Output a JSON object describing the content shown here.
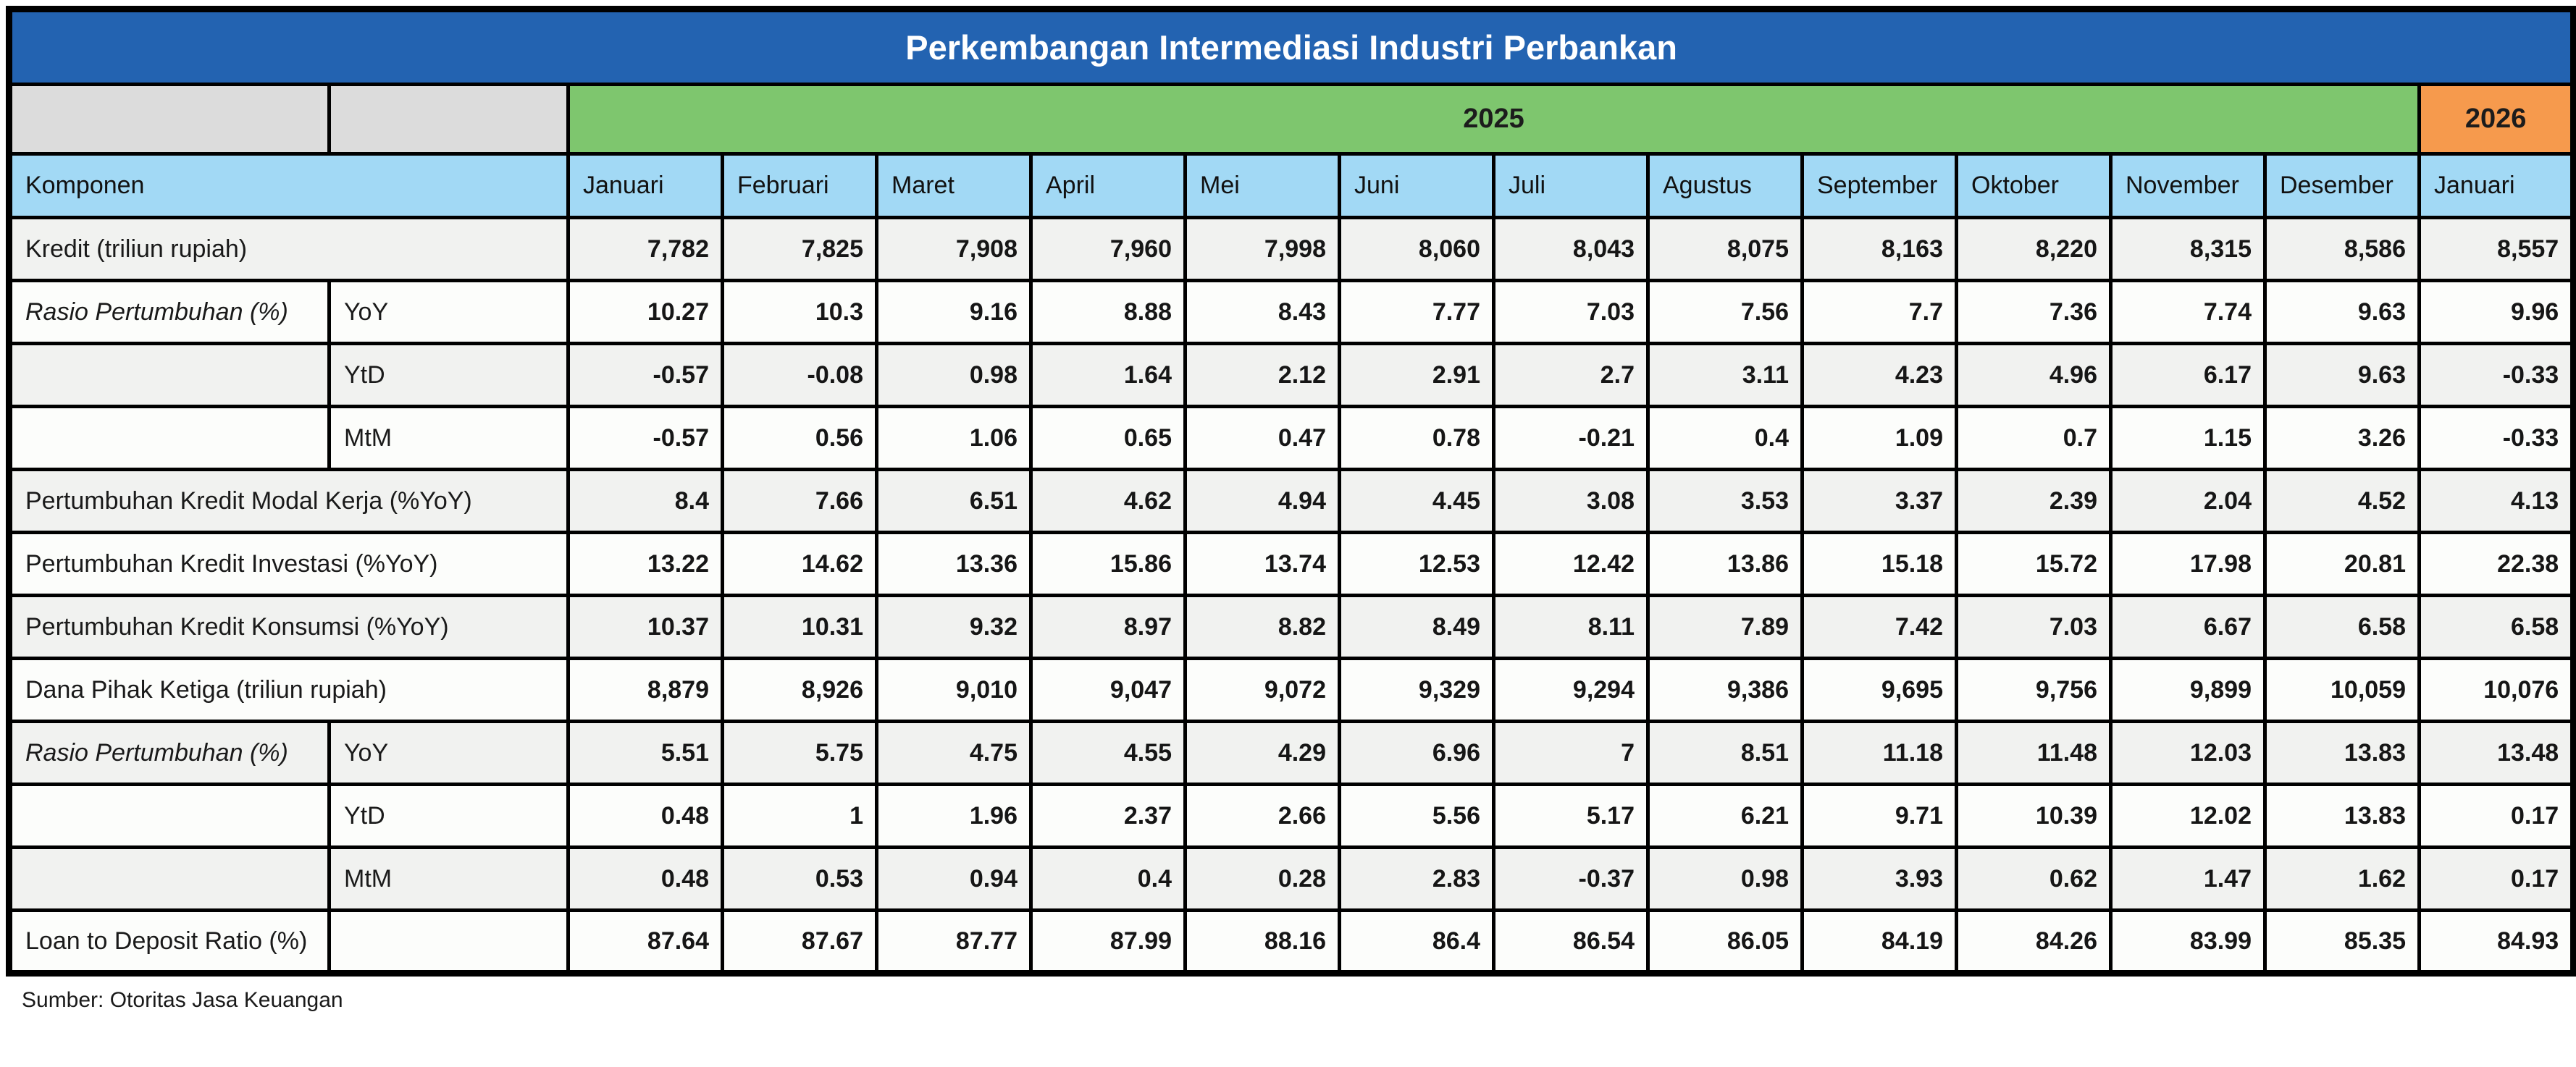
{
  "title": "Perkembangan Intermediasi Industri Perbankan",
  "source_note": "Sumber: Otoritas Jasa Keuangan",
  "colors": {
    "title_bar": "#2363B1",
    "title_text": "#FFFFFF",
    "year_2025": "#7EC66E",
    "year_2026": "#F69A4D",
    "column_header": "#A2D9F5",
    "corner_gray": "#DCDCDC",
    "border": "#000000",
    "row_stripe_odd": "#F1F2F0",
    "row_stripe_even": "#FCFDFB"
  },
  "chart_data": {
    "type": "table",
    "title": "Perkembangan Intermediasi Industri Perbankan",
    "year_groups": [
      {
        "label": "2025",
        "months_span": 12
      },
      {
        "label": "2026",
        "months_span": 1
      }
    ],
    "columns": [
      "Komponen",
      "Januari",
      "Februari",
      "Maret",
      "April",
      "Mei",
      "Juni",
      "Juli",
      "Agustus",
      "September",
      "Oktober",
      "November",
      "Desember",
      "Januari"
    ],
    "rows": [
      {
        "label": "Kredit (triliun rupiah)",
        "sublabel": null,
        "label_colspan": 2,
        "italic": false,
        "values": [
          "7,782",
          "7,825",
          "7,908",
          "7,960",
          "7,998",
          "8,060",
          "8,043",
          "8,075",
          "8,163",
          "8,220",
          "8,315",
          "8,586",
          "8,557"
        ]
      },
      {
        "label": "Rasio Pertumbuhan (%)",
        "sublabel": "YoY",
        "label_colspan": 1,
        "italic": true,
        "values": [
          "10.27",
          "10.3",
          "9.16",
          "8.88",
          "8.43",
          "7.77",
          "7.03",
          "7.56",
          "7.7",
          "7.36",
          "7.74",
          "9.63",
          "9.96"
        ]
      },
      {
        "label": "",
        "sublabel": "YtD",
        "label_colspan": 1,
        "italic": false,
        "values": [
          "-0.57",
          "-0.08",
          "0.98",
          "1.64",
          "2.12",
          "2.91",
          "2.7",
          "3.11",
          "4.23",
          "4.96",
          "6.17",
          "9.63",
          "-0.33"
        ]
      },
      {
        "label": "",
        "sublabel": "MtM",
        "label_colspan": 1,
        "italic": false,
        "values": [
          "-0.57",
          "0.56",
          "1.06",
          "0.65",
          "0.47",
          "0.78",
          "-0.21",
          "0.4",
          "1.09",
          "0.7",
          "1.15",
          "3.26",
          "-0.33"
        ]
      },
      {
        "label": "Pertumbuhan Kredit Modal Kerja (%YoY)",
        "sublabel": null,
        "label_colspan": 2,
        "italic": false,
        "values": [
          "8.4",
          "7.66",
          "6.51",
          "4.62",
          "4.94",
          "4.45",
          "3.08",
          "3.53",
          "3.37",
          "2.39",
          "2.04",
          "4.52",
          "4.13"
        ]
      },
      {
        "label": "Pertumbuhan Kredit Investasi (%YoY)",
        "sublabel": null,
        "label_colspan": 2,
        "italic": false,
        "values": [
          "13.22",
          "14.62",
          "13.36",
          "15.86",
          "13.74",
          "12.53",
          "12.42",
          "13.86",
          "15.18",
          "15.72",
          "17.98",
          "20.81",
          "22.38"
        ]
      },
      {
        "label": "Pertumbuhan Kredit Konsumsi (%YoY)",
        "sublabel": null,
        "label_colspan": 2,
        "italic": false,
        "values": [
          "10.37",
          "10.31",
          "9.32",
          "8.97",
          "8.82",
          "8.49",
          "8.11",
          "7.89",
          "7.42",
          "7.03",
          "6.67",
          "6.58",
          "6.58"
        ]
      },
      {
        "label": "Dana Pihak Ketiga (triliun rupiah)",
        "sublabel": null,
        "label_colspan": 2,
        "italic": false,
        "values": [
          "8,879",
          "8,926",
          "9,010",
          "9,047",
          "9,072",
          "9,329",
          "9,294",
          "9,386",
          "9,695",
          "9,756",
          "9,899",
          "10,059",
          "10,076"
        ]
      },
      {
        "label": "Rasio Pertumbuhan (%)",
        "sublabel": "YoY",
        "label_colspan": 1,
        "italic": true,
        "values": [
          "5.51",
          "5.75",
          "4.75",
          "4.55",
          "4.29",
          "6.96",
          "7",
          "8.51",
          "11.18",
          "11.48",
          "12.03",
          "13.83",
          "13.48"
        ]
      },
      {
        "label": "",
        "sublabel": "YtD",
        "label_colspan": 1,
        "italic": false,
        "values": [
          "0.48",
          "1",
          "1.96",
          "2.37",
          "2.66",
          "5.56",
          "5.17",
          "6.21",
          "9.71",
          "10.39",
          "12.02",
          "13.83",
          "0.17"
        ]
      },
      {
        "label": "",
        "sublabel": "MtM",
        "label_colspan": 1,
        "italic": false,
        "values": [
          "0.48",
          "0.53",
          "0.94",
          "0.4",
          "0.28",
          "2.83",
          "-0.37",
          "0.98",
          "3.93",
          "0.62",
          "1.47",
          "1.62",
          "0.17"
        ]
      },
      {
        "label": "Loan to Deposit Ratio (%)",
        "sublabel": "",
        "label_colspan": 1,
        "italic": false,
        "values": [
          "87.64",
          "87.67",
          "87.77",
          "87.99",
          "88.16",
          "86.4",
          "86.54",
          "86.05",
          "84.19",
          "84.26",
          "83.99",
          "85.35",
          "84.93"
        ]
      }
    ]
  }
}
